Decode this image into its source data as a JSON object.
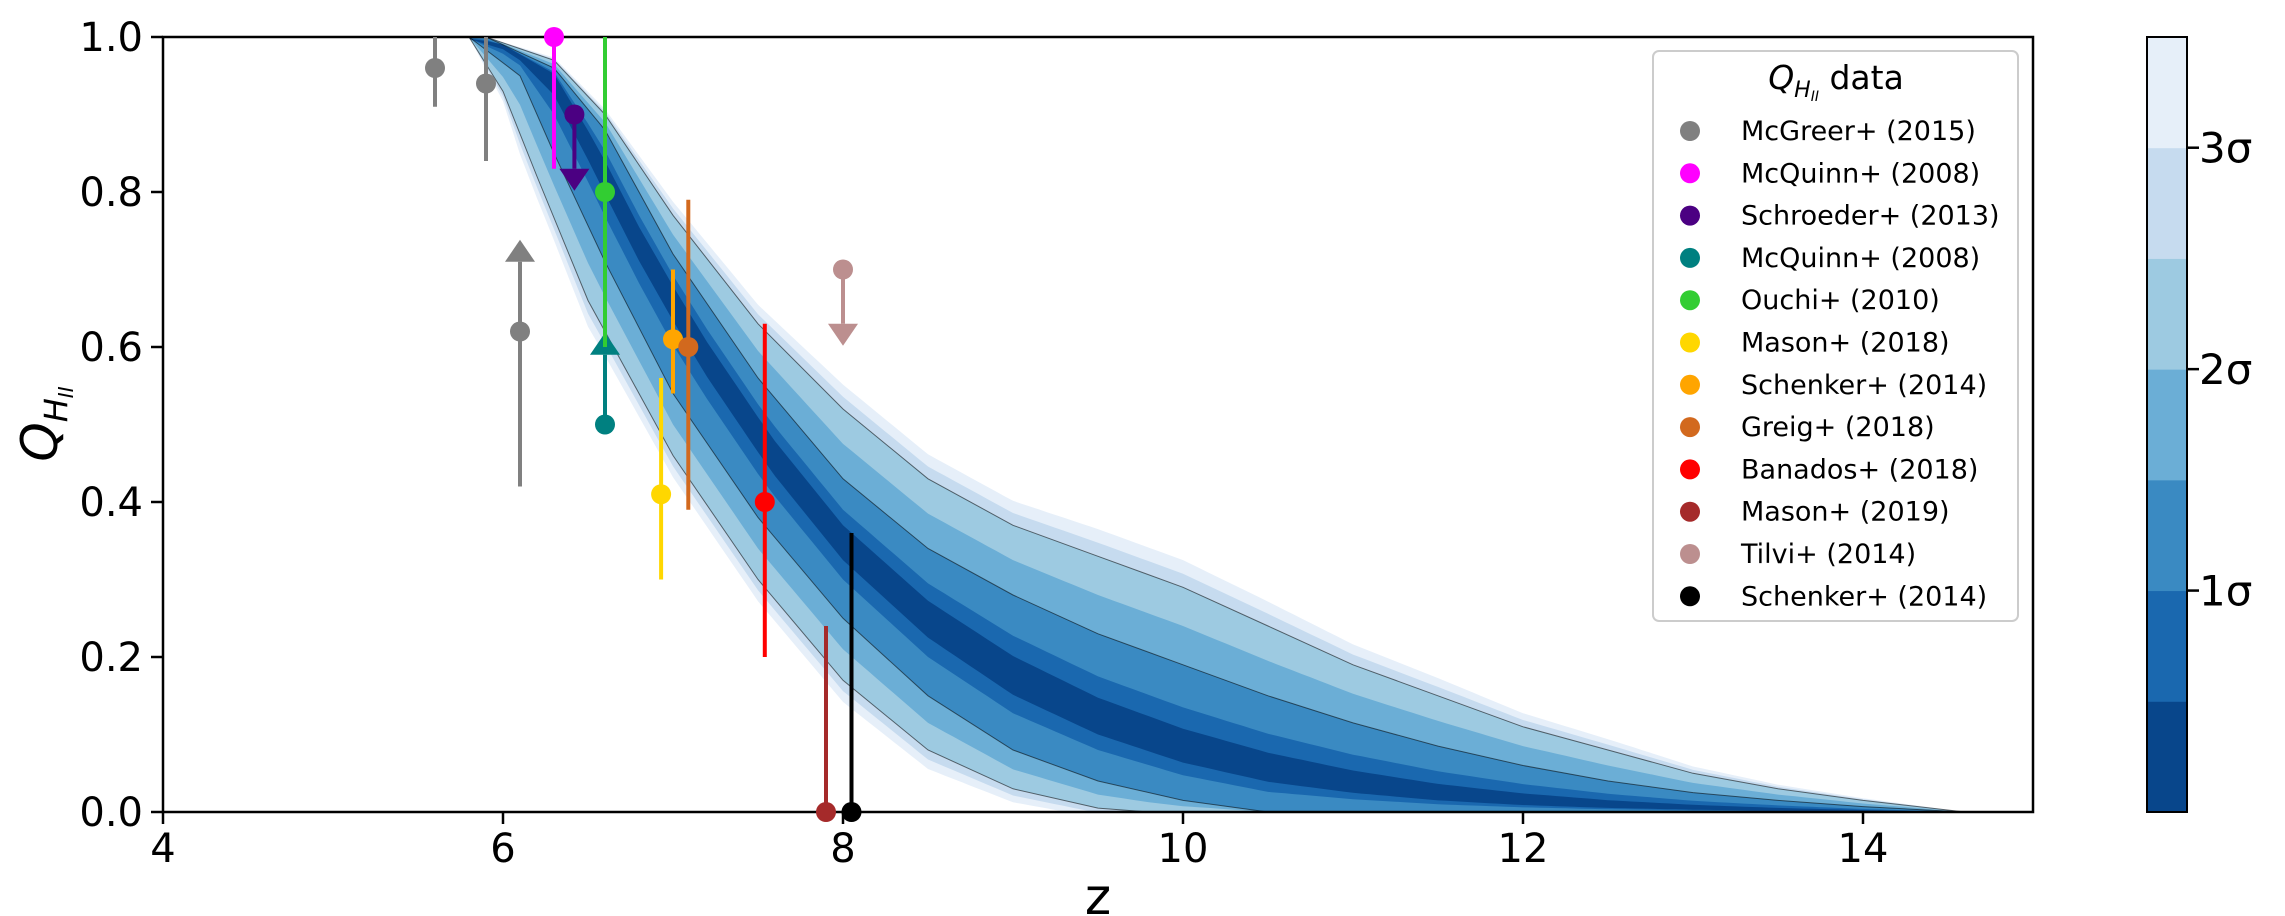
{
  "chart_data": {
    "type": "scatter",
    "xlabel": "z",
    "ylabel_main": "Q",
    "ylabel_sub": "H",
    "ylabel_subsub": "II",
    "xlim": [
      4,
      15
    ],
    "ylim": [
      0,
      1
    ],
    "x_ticks": [
      4,
      6,
      8,
      10,
      12,
      14
    ],
    "x_tick_labels": [
      "4",
      "6",
      "8",
      "10",
      "12",
      "14"
    ],
    "y_ticks": [
      0,
      0.2,
      0.4,
      0.6,
      0.8,
      1.0
    ],
    "y_tick_labels": [
      "0.0",
      "0.2",
      "0.4",
      "0.6",
      "0.8",
      "1.0"
    ],
    "legend": {
      "title_main": "Q",
      "title_sub": "H",
      "title_subsub": "II",
      "title_suffix": " data",
      "placement": "top-right"
    },
    "contour": {
      "colormap": [
        "#08468b",
        "#1a68af",
        "#3a8ac2",
        "#6baed6",
        "#9dcae1",
        "#c6dbef",
        "#e6eff9"
      ],
      "edge_color": "#000000",
      "median": [
        [
          5.7,
          1.0
        ],
        [
          6.0,
          0.99
        ],
        [
          6.3,
          0.95
        ],
        [
          6.5,
          0.87
        ],
        [
          6.8,
          0.74
        ],
        [
          7.2,
          0.59
        ],
        [
          7.6,
          0.46
        ],
        [
          8.0,
          0.35
        ],
        [
          8.5,
          0.25
        ],
        [
          9.0,
          0.175
        ],
        [
          9.5,
          0.12
        ],
        [
          10.0,
          0.08
        ],
        [
          10.5,
          0.052
        ],
        [
          11.0,
          0.033
        ],
        [
          11.5,
          0.02
        ],
        [
          12.0,
          0.012
        ],
        [
          12.5,
          0.007
        ],
        [
          13.0,
          0.004
        ],
        [
          13.5,
          0.002
        ],
        [
          14.0,
          0.001
        ],
        [
          14.5,
          0.0
        ]
      ],
      "sigma_lines": [
        {
          "level": "upper_2sigma",
          "points": [
            [
              5.9,
              1.0
            ],
            [
              6.3,
              0.97
            ],
            [
              6.6,
              0.9
            ],
            [
              7.0,
              0.77
            ],
            [
              7.5,
              0.63
            ],
            [
              8.0,
              0.52
            ],
            [
              8.5,
              0.43
            ],
            [
              9.0,
              0.37
            ],
            [
              9.5,
              0.33
            ],
            [
              10.0,
              0.29
            ],
            [
              10.5,
              0.24
            ],
            [
              11.0,
              0.19
            ],
            [
              11.5,
              0.15
            ],
            [
              12.0,
              0.11
            ],
            [
              12.5,
              0.08
            ],
            [
              13.0,
              0.05
            ],
            [
              13.5,
              0.03
            ],
            [
              14.0,
              0.015
            ],
            [
              14.6,
              0.0
            ]
          ]
        },
        {
          "level": "upper_1sigma",
          "points": [
            [
              5.9,
              1.0
            ],
            [
              6.3,
              0.96
            ],
            [
              6.6,
              0.88
            ],
            [
              7.0,
              0.72
            ],
            [
              7.5,
              0.56
            ],
            [
              8.0,
              0.43
            ],
            [
              8.5,
              0.34
            ],
            [
              9.0,
              0.28
            ],
            [
              9.5,
              0.23
            ],
            [
              10.0,
              0.19
            ],
            [
              10.5,
              0.15
            ],
            [
              11.0,
              0.115
            ],
            [
              11.5,
              0.085
            ],
            [
              12.0,
              0.06
            ],
            [
              12.5,
              0.04
            ],
            [
              13.0,
              0.025
            ],
            [
              13.5,
              0.015
            ],
            [
              14.0,
              0.007
            ],
            [
              14.6,
              0.0
            ]
          ]
        },
        {
          "level": "lower_1sigma",
          "points": [
            [
              5.8,
              1.0
            ],
            [
              6.1,
              0.95
            ],
            [
              6.3,
              0.85
            ],
            [
              6.6,
              0.71
            ],
            [
              7.0,
              0.54
            ],
            [
              7.5,
              0.38
            ],
            [
              8.0,
              0.25
            ],
            [
              8.5,
              0.15
            ],
            [
              9.0,
              0.08
            ],
            [
              9.5,
              0.04
            ],
            [
              10.0,
              0.015
            ],
            [
              10.5,
              0.0
            ]
          ]
        },
        {
          "level": "lower_2sigma",
          "points": [
            [
              5.8,
              1.0
            ],
            [
              6.0,
              0.93
            ],
            [
              6.2,
              0.82
            ],
            [
              6.5,
              0.66
            ],
            [
              7.0,
              0.46
            ],
            [
              7.5,
              0.3
            ],
            [
              8.0,
              0.17
            ],
            [
              8.5,
              0.08
            ],
            [
              9.0,
              0.03
            ],
            [
              9.5,
              0.005
            ],
            [
              9.8,
              0.0
            ]
          ]
        }
      ]
    },
    "series": [
      {
        "name": "McGreer+ (2015)",
        "color": "#808080",
        "points": [
          {
            "x": 5.6,
            "y": 0.96,
            "yerr_low": 0.05,
            "yerr_high": 0.04
          },
          {
            "x": 5.9,
            "y": 0.94,
            "yerr_low": 0.1,
            "yerr_high": 0.06
          },
          {
            "x": 6.1,
            "y": 0.62,
            "yerr_low": 0.2,
            "yerr_high": 0.0,
            "lower_limit": true
          }
        ]
      },
      {
        "name": "McQuinn+ (2008)",
        "color": "#ff00ff",
        "points": [
          {
            "x": 6.3,
            "y": 1.0,
            "yerr_low": 0.17,
            "yerr_high": 0.0
          }
        ]
      },
      {
        "name": "Schroeder+ (2013)",
        "color": "#4b0082",
        "points": [
          {
            "x": 6.42,
            "y": 0.9,
            "yerr_low": 0.0,
            "yerr_high": 0.0,
            "upper_limit": true
          }
        ]
      },
      {
        "name": "McQuinn+ (2008)",
        "color": "#008080",
        "points": [
          {
            "x": 6.6,
            "y": 0.5,
            "yerr_low": 0.0,
            "yerr_high": 0.0,
            "lower_limit": true
          }
        ]
      },
      {
        "name": "Ouchi+ (2010)",
        "color": "#32cd32",
        "points": [
          {
            "x": 6.6,
            "y": 0.8,
            "yerr_low": 0.2,
            "yerr_high": 0.2
          }
        ]
      },
      {
        "name": "Mason+ (2018)",
        "color": "#ffd700",
        "points": [
          {
            "x": 6.93,
            "y": 0.41,
            "yerr_low": 0.11,
            "yerr_high": 0.15
          }
        ]
      },
      {
        "name": "Schenker+ (2014)",
        "color": "#ffa500",
        "points": [
          {
            "x": 7.0,
            "y": 0.61,
            "yerr_low": 0.07,
            "yerr_high": 0.09
          }
        ]
      },
      {
        "name": "Greig+ (2018)",
        "color": "#d2691e",
        "points": [
          {
            "x": 7.09,
            "y": 0.6,
            "yerr_low": 0.21,
            "yerr_high": 0.19
          }
        ]
      },
      {
        "name": "Banados+ (2018)",
        "color": "#ff0000",
        "points": [
          {
            "x": 7.54,
            "y": 0.4,
            "yerr_low": 0.2,
            "yerr_high": 0.23
          }
        ]
      },
      {
        "name": "Mason+ (2019)",
        "color": "#a52a2a",
        "points": [
          {
            "x": 7.9,
            "y": 0.0,
            "yerr_low": 0.0,
            "yerr_high": 0.24
          }
        ]
      },
      {
        "name": "Tilvi+ (2014)",
        "color": "#bc8f8f",
        "points": [
          {
            "x": 8.0,
            "y": 0.7,
            "yerr_low": 0.0,
            "yerr_high": 0.0,
            "upper_limit": true
          }
        ]
      },
      {
        "name": "Schenker+ (2014)",
        "color": "#000000",
        "points": [
          {
            "x": 8.05,
            "y": 0.0,
            "yerr_low": 0.0,
            "yerr_high": 0.36
          }
        ]
      }
    ],
    "colorbar": {
      "labels": [
        "1σ",
        "2σ",
        "3σ"
      ],
      "colors": [
        "#08468b",
        "#1a68af",
        "#3a8ac2",
        "#6baed6",
        "#9dcae1",
        "#c6dbef",
        "#e6eff9"
      ]
    }
  }
}
